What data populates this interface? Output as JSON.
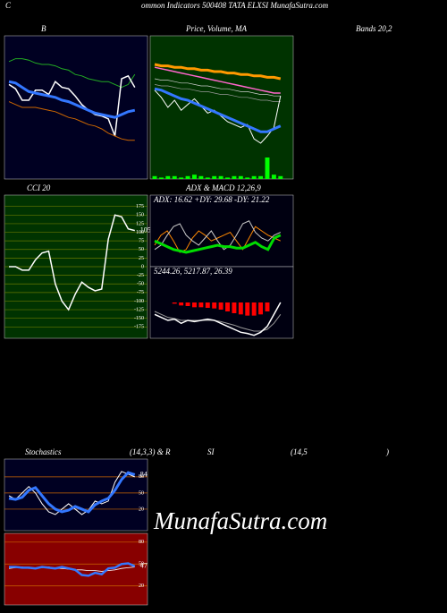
{
  "header": [
    "C",
    "ommon Indicators 500408 TATA ELXSI MunafaSutra.com"
  ],
  "watermark": "MunafaSutra.com",
  "chart_data": [
    {
      "type": "line",
      "title": "B",
      "title_tail": [
        "Bands 20,2"
      ],
      "background": "#000022",
      "ylim": [
        0,
        100
      ],
      "series": [
        {
          "color": "#22aa22",
          "width": 1,
          "values": [
            82,
            84,
            84,
            83,
            81,
            80,
            80,
            79,
            77,
            76,
            73,
            72,
            70,
            69,
            68,
            68,
            66,
            64,
            66,
            73
          ]
        },
        {
          "color": "#ffffff",
          "width": 1.5,
          "values": [
            66,
            63,
            55,
            55,
            62,
            62,
            59,
            68,
            64,
            63,
            58,
            52,
            48,
            45,
            44,
            42,
            30,
            70,
            72,
            64
          ]
        },
        {
          "color": "#3377ff",
          "width": 3,
          "values": [
            68,
            67,
            64,
            61,
            60,
            59,
            58,
            57,
            55,
            54,
            52,
            50,
            48,
            46,
            45,
            44,
            43,
            45,
            47,
            48
          ]
        },
        {
          "color": "#cc6600",
          "width": 1,
          "values": [
            54,
            52,
            50,
            50,
            50,
            49,
            48,
            47,
            45,
            43,
            42,
            40,
            38,
            37,
            35,
            32,
            30,
            28,
            27,
            27
          ]
        }
      ]
    },
    {
      "type": "line",
      "title": "Price, Volume, MA",
      "background": "#003300",
      "ylim": [
        0,
        100
      ],
      "series": [
        {
          "color": "#ff9900",
          "width": 3,
          "values": [
            80,
            79,
            79,
            78,
            78,
            77,
            77,
            76,
            76,
            75,
            75,
            74,
            74,
            73,
            73,
            72,
            72,
            71,
            71,
            70
          ]
        },
        {
          "color": "#ff66cc",
          "width": 1.5,
          "values": [
            78,
            77,
            76,
            75,
            74,
            73,
            72,
            71,
            70,
            69,
            68,
            67,
            66,
            65,
            64,
            63,
            62,
            61,
            60,
            60
          ]
        },
        {
          "color": "#cccccc",
          "width": 0.7,
          "values": [
            70,
            69,
            69,
            68,
            67,
            67,
            66,
            65,
            65,
            64,
            63,
            63,
            62,
            61,
            61,
            60,
            59,
            59,
            58,
            58
          ]
        },
        {
          "color": "#999999",
          "width": 0.7,
          "values": [
            66,
            65,
            65,
            64,
            63,
            63,
            62,
            61,
            61,
            60,
            59,
            59,
            58,
            57,
            57,
            56,
            55,
            55,
            54,
            54
          ]
        },
        {
          "color": "#ffffff",
          "width": 1,
          "values": [
            62,
            57,
            50,
            55,
            48,
            52,
            56,
            51,
            46,
            48,
            44,
            40,
            38,
            36,
            38,
            28,
            25,
            30,
            36,
            58
          ]
        },
        {
          "color": "#3377ff",
          "width": 3,
          "values": [
            63,
            62,
            60,
            58,
            56,
            55,
            53,
            51,
            49,
            47,
            45,
            43,
            41,
            39,
            37,
            35,
            33,
            33,
            35,
            37
          ]
        },
        {
          "color": "#00ff00",
          "style": "bar",
          "values": [
            2,
            1,
            2,
            2,
            1,
            2,
            3,
            2,
            1,
            2,
            2,
            1,
            2,
            2,
            1,
            2,
            2,
            15,
            3,
            2
          ]
        }
      ]
    },
    {
      "type": "line",
      "title": "CCI 20",
      "background": "#003300",
      "grid_color": "#667700",
      "ylim": [
        -208,
        208
      ],
      "yticks": [
        175,
        150,
        125,
        100,
        75,
        50,
        25,
        0,
        -25,
        -50,
        -75,
        -100,
        -125,
        -150,
        -175
      ],
      "series": [
        {
          "color": "#ffffff",
          "width": 1.5,
          "label_last": true,
          "values": [
            0,
            0,
            -10,
            -10,
            20,
            40,
            45,
            -50,
            -100,
            -125,
            -80,
            -45,
            -60,
            -70,
            -65,
            80,
            150,
            145,
            110,
            105
          ]
        }
      ]
    },
    {
      "type": "line",
      "title": "ADX  & MACD 12,26,9",
      "subtitle": "ADX: 16.62  +DY: 29.68  -DY: 21.22",
      "background": "#000011",
      "ylim": [
        0,
        50
      ],
      "series": [
        {
          "color": "#ff8800",
          "width": 1,
          "values": [
            15,
            22,
            25,
            18,
            10,
            12,
            20,
            25,
            22,
            18,
            20,
            22,
            24,
            18,
            12,
            20,
            28,
            25,
            22,
            20,
            18
          ]
        },
        {
          "color": "#cccccc",
          "width": 1,
          "values": [
            12,
            15,
            22,
            28,
            30,
            22,
            18,
            15,
            20,
            25,
            18,
            12,
            15,
            22,
            30,
            32,
            24,
            20,
            18,
            22,
            24
          ]
        },
        {
          "color": "#00dd00",
          "width": 3,
          "values": [
            18,
            16,
            14,
            12,
            11,
            10,
            11,
            12,
            13,
            14,
            15,
            14,
            14,
            13,
            13,
            15,
            17,
            14,
            12,
            20,
            22
          ]
        }
      ]
    },
    {
      "type": "line",
      "subtitle": "5244.26, 5217.87, 26.39",
      "background": "#000011",
      "ylim": [
        -60,
        60
      ],
      "series": [
        {
          "color": "#ff0000",
          "style": "bar",
          "values": [
            0,
            0,
            0,
            -2,
            -5,
            -6,
            -8,
            -8,
            -9,
            -10,
            -12,
            -15,
            -18,
            -20,
            -22,
            -22,
            -20,
            -15,
            0,
            0
          ]
        },
        {
          "color": "#999999",
          "width": 1,
          "values": [
            -15,
            -20,
            -25,
            -27,
            -30,
            -30,
            -30,
            -30,
            -30,
            -30,
            -32,
            -35,
            -38,
            -42,
            -45,
            -48,
            -48,
            -45,
            -35,
            -20
          ]
        },
        {
          "color": "#ffffff",
          "width": 1.5,
          "values": [
            -20,
            -25,
            -30,
            -28,
            -35,
            -30,
            -32,
            -30,
            -28,
            -30,
            -35,
            -40,
            -45,
            -50,
            -52,
            -55,
            -50,
            -40,
            -20,
            0
          ]
        }
      ]
    },
    {
      "type": "line",
      "title": "Stochastics",
      "title_tail": [
        "(14,3,3) & R",
        "SI",
        "(14,5",
        ")"
      ],
      "background": "#000022",
      "grid_color": "#cc6600",
      "ylim": [
        -20,
        113
      ],
      "yticks": [
        80,
        50,
        20
      ],
      "series": [
        {
          "color": "#ffffff",
          "width": 1,
          "values": [
            45,
            38,
            50,
            62,
            50,
            30,
            15,
            10,
            20,
            30,
            20,
            10,
            18,
            35,
            30,
            35,
            70,
            90,
            85,
            80
          ]
        },
        {
          "color": "#3377ff",
          "width": 3,
          "label_last": true,
          "values": [
            40,
            38,
            42,
            55,
            60,
            45,
            30,
            20,
            15,
            18,
            25,
            20,
            15,
            28,
            35,
            40,
            55,
            75,
            88,
            84
          ]
        }
      ]
    },
    {
      "type": "line",
      "background": "#880000",
      "grid_color": "#cc6600",
      "ylim": [
        -6,
        92
      ],
      "yticks": [
        80,
        50,
        20
      ],
      "series": [
        {
          "color": "#ffffff",
          "width": 0.8,
          "values": [
            44,
            45,
            46,
            44,
            45,
            45,
            46,
            44,
            44,
            43,
            42,
            42,
            41,
            41,
            40,
            41,
            42,
            44,
            45,
            46
          ]
        },
        {
          "color": "#3377ff",
          "width": 2.5,
          "label_last": true,
          "values": [
            46,
            46,
            45,
            45,
            44,
            46,
            45,
            44,
            46,
            44,
            42,
            35,
            34,
            38,
            36,
            44,
            45,
            50,
            51,
            47
          ]
        }
      ]
    }
  ]
}
